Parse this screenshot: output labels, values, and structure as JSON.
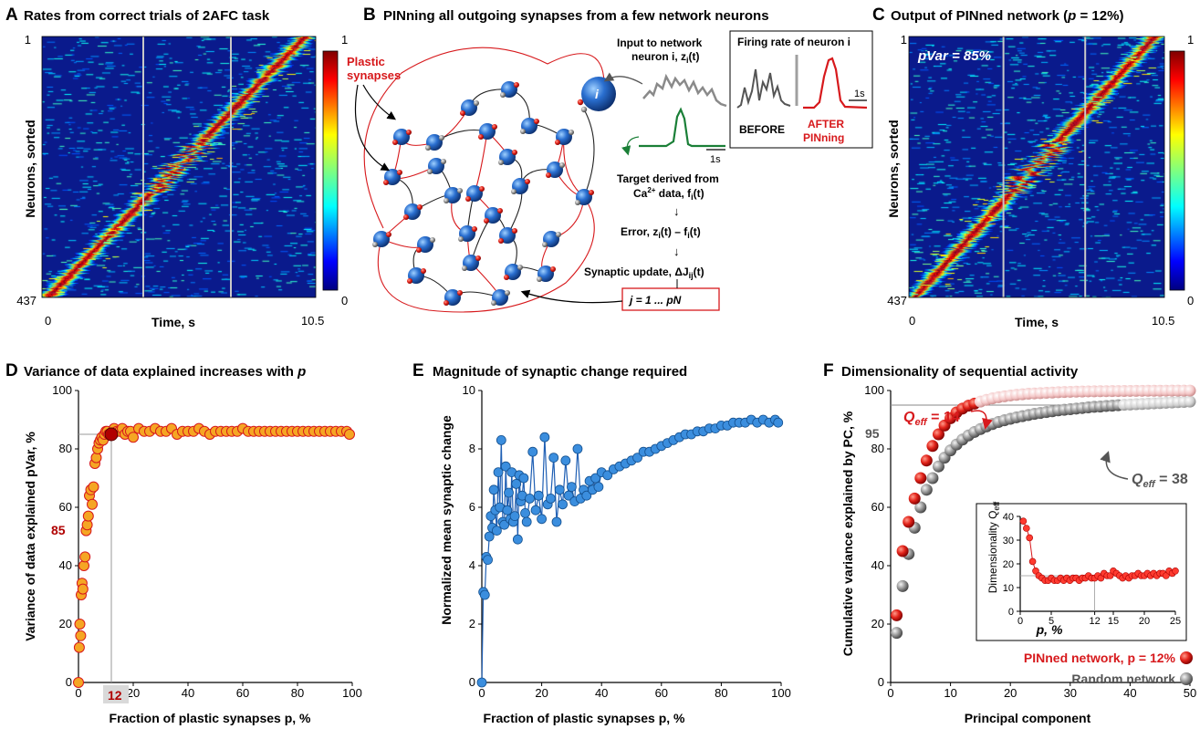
{
  "panels": {
    "A": {
      "letter": "A",
      "title": "Rates from correct trials of 2AFC task",
      "ylabel": "Neurons, sorted",
      "xlabel": "Time, s",
      "y_top": "1",
      "y_bottom": "437",
      "x_left": "0",
      "x_right": "10.5",
      "cbar_top": "1",
      "cbar_bottom": "0"
    },
    "B": {
      "letter": "B",
      "title": "PINning all outgoing synapses from a few network neurons",
      "plastic_label_1": "Plastic",
      "plastic_label_2": "synapses",
      "neuron_i": "i",
      "input_1": "Input to network",
      "input_2": "neuron i,  z",
      "input_sub": "i",
      "input_3": "(t)",
      "firing_title": "Firing rate of neuron i",
      "before": "BEFORE",
      "after_1": "AFTER",
      "after_2": "PINning",
      "scale_1s_a": "1s",
      "scale_1s_b": "1s",
      "target_1": "Target derived from",
      "target_2": "Ca",
      "target_sup": "2+",
      "target_3": " data,  f",
      "target_sub": "i",
      "target_4": "(t)",
      "arrow": "↓",
      "error_1": "Error,  z",
      "error_sub1": "i",
      "error_2": "(t) – f",
      "error_sub2": "i",
      "error_3": "(t)",
      "update_1": "Synaptic update,  ΔJ",
      "update_sub": "ij",
      "update_2": "(t)",
      "jrange": "j = 1 ... pN"
    },
    "C": {
      "letter": "C",
      "title": "Output of PINned network (",
      "title_p": "p",
      "title_end": " = 12%)",
      "pvar": "pVar = 85%",
      "ylabel": "Neurons, sorted",
      "xlabel": "Time, s",
      "y_top": "1",
      "y_bottom": "437",
      "x_left": "0",
      "x_right": "10.5",
      "cbar_top": "1",
      "cbar_bottom": "0"
    },
    "D": {
      "letter": "D",
      "title": "Variance of data explained increases with ",
      "title_p": "p",
      "ylabel": "Variance of data explained pVar, %",
      "xlabel": "Fraction of plastic synapses p, %",
      "mark_y": "85",
      "mark_x": "12"
    },
    "E": {
      "letter": "E",
      "title": "Magnitude of synaptic change required",
      "ylabel": "Normalized mean synaptic change",
      "xlabel": "Fraction of plastic synapses p, %"
    },
    "F": {
      "letter": "F",
      "title": "Dimensionality of sequential activity",
      "ylabel": "Cumulative variance explained by PC, %",
      "xlabel": "Principal component",
      "mark_y": "95",
      "qeff_red": "Q",
      "qeff_red_sub": "eff",
      "qeff_red_val": " = 14",
      "qeff_gray": "Q",
      "qeff_gray_sub": "eff",
      "qeff_gray_val": " = 38",
      "inset_ylabel": "Dimensionality Q",
      "inset_ylabel_sub": "eff",
      "inset_xlabel": "p, %",
      "legend_red": "PINned network, p = 12%",
      "legend_gray": "Random network"
    }
  },
  "colors": {
    "red": "#d7191c",
    "orange": "#f5a623",
    "darkred": "#b00000",
    "blue": "#3b8ede",
    "gray": "#808080",
    "green": "#1a7f37",
    "heat_bg": "#0a1a8c"
  },
  "chart_data": [
    {
      "panel": "A",
      "type": "heatmap",
      "title": "Rates from correct trials of 2AFC task",
      "xlabel": "Time, s",
      "ylabel": "Neurons, sorted",
      "xlim": [
        0,
        10.5
      ],
      "ylim": [
        1,
        437
      ],
      "colorbar": [
        0,
        1
      ],
      "vertical_lines_fraction": [
        0.37,
        0.69
      ]
    },
    {
      "panel": "C",
      "type": "heatmap",
      "title": "Output of PINned network (p = 12%)",
      "xlabel": "Time, s",
      "ylabel": "Neurons, sorted",
      "xlim": [
        0,
        10.5
      ],
      "ylim": [
        1,
        437
      ],
      "colorbar": [
        0,
        1
      ],
      "vertical_lines_fraction": [
        0.37,
        0.69
      ]
    },
    {
      "panel": "D",
      "type": "scatter",
      "title": "Variance of data explained increases with p",
      "xlabel": "Fraction of plastic synapses p, %",
      "ylabel": "Variance of data explained pVar, %",
      "xlim": [
        0,
        100
      ],
      "ylim": [
        0,
        100
      ],
      "xticks": [
        0,
        20,
        40,
        60,
        80,
        100
      ],
      "yticks": [
        0,
        20,
        40,
        60,
        80,
        100
      ],
      "x": [
        0,
        0.3,
        0.5,
        0.8,
        1,
        1.3,
        1.6,
        2,
        2.4,
        2.8,
        3.2,
        3.6,
        4,
        4.5,
        5,
        5.5,
        6,
        6.5,
        7,
        7.5,
        8,
        8.5,
        9,
        9.5,
        10,
        10.5,
        11,
        11.5,
        12,
        13,
        14,
        15,
        16,
        17,
        18,
        19,
        20,
        22,
        24,
        26,
        28,
        30,
        32,
        34,
        36,
        38,
        40,
        42,
        44,
        46,
        48,
        50,
        52,
        54,
        56,
        58,
        60,
        62,
        64,
        66,
        68,
        70,
        72,
        74,
        76,
        78,
        80,
        82,
        84,
        86,
        88,
        90,
        92,
        94,
        96,
        98,
        99
      ],
      "y": [
        0,
        12,
        20,
        16,
        30,
        34,
        32,
        40,
        43,
        52,
        54,
        57,
        64,
        66,
        61,
        67,
        75,
        77,
        80,
        82,
        83,
        84,
        83,
        85,
        86,
        86,
        85,
        85,
        85,
        87,
        86,
        86,
        87,
        85,
        86,
        86,
        84,
        87,
        86,
        86,
        87,
        86,
        86,
        87,
        85,
        86,
        86,
        86,
        87,
        86,
        85,
        86,
        86,
        86,
        86,
        86,
        87,
        86,
        86,
        86,
        86,
        86,
        86,
        86,
        86,
        86,
        86,
        86,
        86,
        86,
        86,
        86,
        86,
        86,
        86,
        86,
        85
      ],
      "highlight": {
        "x": 12,
        "y": 85
      }
    },
    {
      "panel": "E",
      "type": "line",
      "title": "Magnitude of synaptic change required",
      "xlabel": "Fraction of plastic synapses p, %",
      "ylabel": "Normalized mean synaptic change",
      "xlim": [
        0,
        100
      ],
      "ylim": [
        0,
        10
      ],
      "xticks": [
        0,
        20,
        40,
        60,
        80,
        100
      ],
      "yticks": [
        0,
        2,
        4,
        6,
        8,
        10
      ],
      "x": [
        0,
        0.5,
        1,
        1.5,
        2,
        2.5,
        3,
        3.5,
        4,
        4.5,
        5,
        5.5,
        6,
        6.5,
        7,
        7.5,
        8,
        8.5,
        9,
        9.5,
        10,
        10.5,
        11,
        11.5,
        12,
        12.5,
        13,
        13.5,
        14,
        14.5,
        15,
        16,
        17,
        18,
        19,
        20,
        21,
        22,
        23,
        24,
        25,
        26,
        27,
        28,
        29,
        30,
        31,
        32,
        33,
        34,
        35,
        36,
        37,
        38,
        39,
        40,
        42,
        44,
        46,
        48,
        50,
        52,
        54,
        56,
        58,
        60,
        62,
        64,
        66,
        68,
        70,
        72,
        74,
        76,
        78,
        80,
        82,
        84,
        86,
        88,
        90,
        92,
        94,
        96,
        98,
        99
      ],
      "y": [
        0,
        3.1,
        3.0,
        4.3,
        4.2,
        5.0,
        5.7,
        5.3,
        6.6,
        5.9,
        5.2,
        7.2,
        6.0,
        8.3,
        5.5,
        5.4,
        7.4,
        5.9,
        6.5,
        5.6,
        7.2,
        5.5,
        5.7,
        6.8,
        4.9,
        7.1,
        6.2,
        6.4,
        7.0,
        5.8,
        5.5,
        6.3,
        7.9,
        5.9,
        6.4,
        5.6,
        8.4,
        6.1,
        6.3,
        7.7,
        5.5,
        6.6,
        6.1,
        7.6,
        6.4,
        6.7,
        6.2,
        8.0,
        6.3,
        6.6,
        6.4,
        6.9,
        6.6,
        7.0,
        6.7,
        7.2,
        7.1,
        7.3,
        7.4,
        7.5,
        7.6,
        7.7,
        7.9,
        7.9,
        8.0,
        8.1,
        8.2,
        8.3,
        8.4,
        8.5,
        8.5,
        8.6,
        8.6,
        8.7,
        8.7,
        8.8,
        8.8,
        8.9,
        8.9,
        8.9,
        9.0,
        8.9,
        9.0,
        8.9,
        9.0,
        8.9
      ]
    },
    {
      "panel": "F",
      "type": "scatter",
      "title": "Dimensionality of sequential activity",
      "xlabel": "Principal component",
      "ylabel": "Cumulative variance explained by PC, %",
      "xlim": [
        0,
        50
      ],
      "ylim": [
        0,
        100
      ],
      "xticks": [
        0,
        10,
        20,
        30,
        40,
        50
      ],
      "yticks": [
        0,
        20,
        40,
        60,
        80,
        100
      ],
      "threshold": 95,
      "series": [
        {
          "name": "PINned network, p = 12%",
          "x": [
            1,
            2,
            3,
            4,
            5,
            6,
            7,
            8,
            9,
            10,
            11,
            12,
            13,
            14,
            15,
            16,
            17,
            18,
            19,
            20,
            21,
            22,
            23,
            24,
            25,
            26,
            27,
            28,
            29,
            30,
            31,
            32,
            33,
            34,
            35,
            36,
            37,
            38,
            39,
            40,
            41,
            42,
            43,
            44,
            45,
            46,
            47,
            48,
            49,
            50
          ],
          "y": [
            23,
            45,
            55,
            63,
            70,
            76,
            81,
            85,
            88,
            90.5,
            92.5,
            93.8,
            94.8,
            95.5,
            96.2,
            96.8,
            97.3,
            97.7,
            98,
            98.3,
            98.5,
            98.7,
            98.9,
            99,
            99.1,
            99.2,
            99.3,
            99.4,
            99.5,
            99.55,
            99.6,
            99.65,
            99.7,
            99.72,
            99.75,
            99.78,
            99.8,
            99.82,
            99.84,
            99.86,
            99.88,
            99.9,
            99.91,
            99.92,
            99.93,
            99.94,
            99.95,
            99.96,
            99.97,
            99.98
          ],
          "qeff": 14
        },
        {
          "name": "Random network",
          "x": [
            1,
            2,
            3,
            4,
            5,
            6,
            7,
            8,
            9,
            10,
            11,
            12,
            13,
            14,
            15,
            16,
            17,
            18,
            19,
            20,
            21,
            22,
            23,
            24,
            25,
            26,
            27,
            28,
            29,
            30,
            31,
            32,
            33,
            34,
            35,
            36,
            37,
            38,
            39,
            40,
            41,
            42,
            43,
            44,
            45,
            46,
            47,
            48,
            49,
            50
          ],
          "y": [
            17,
            33,
            44,
            53,
            60,
            66,
            70,
            74,
            77,
            79.5,
            81.5,
            83.2,
            84.6,
            85.8,
            86.8,
            87.7,
            88.5,
            89.2,
            89.8,
            90.3,
            90.8,
            91.2,
            91.6,
            92,
            92.3,
            92.6,
            92.9,
            93.2,
            93.4,
            93.6,
            93.8,
            94,
            94.2,
            94.4,
            94.5,
            94.7,
            94.8,
            94.95,
            95.1,
            95.2,
            95.3,
            95.4,
            95.5,
            95.6,
            95.7,
            95.8,
            95.9,
            96,
            96.1,
            96.2
          ],
          "qeff": 38
        }
      ],
      "inset": {
        "type": "line",
        "xlabel": "p, %",
        "ylabel": "Dimensionality Qeff",
        "xlim": [
          0,
          25
        ],
        "ylim": [
          0,
          40
        ],
        "xticks": [
          0,
          5,
          12,
          15,
          20,
          25
        ],
        "yticks": [
          0,
          10,
          20,
          30,
          40
        ],
        "x": [
          0.5,
          1,
          1.5,
          2,
          2.5,
          3,
          3.5,
          4,
          4.5,
          5,
          5.5,
          6,
          6.5,
          7,
          7.5,
          8,
          8.5,
          9,
          9.5,
          10,
          10.5,
          11,
          11.5,
          12,
          12.5,
          13,
          13.5,
          14,
          14.5,
          15,
          15.5,
          16,
          16.5,
          17,
          17.5,
          18,
          18.5,
          19,
          19.5,
          20,
          20.5,
          21,
          21.5,
          22,
          22.5,
          23,
          23.5,
          24,
          24.5,
          25
        ],
        "y": [
          38,
          35,
          31,
          21,
          17,
          15,
          14,
          13,
          13,
          14,
          13,
          13,
          14,
          13,
          14,
          13,
          14,
          14,
          13,
          14,
          14,
          15,
          14,
          14,
          15,
          14,
          16,
          15,
          15,
          17,
          16,
          15,
          14,
          15,
          14,
          15,
          15,
          16,
          15,
          15,
          16,
          15,
          16,
          15,
          16,
          16,
          15,
          17,
          16,
          17
        ]
      }
    }
  ]
}
